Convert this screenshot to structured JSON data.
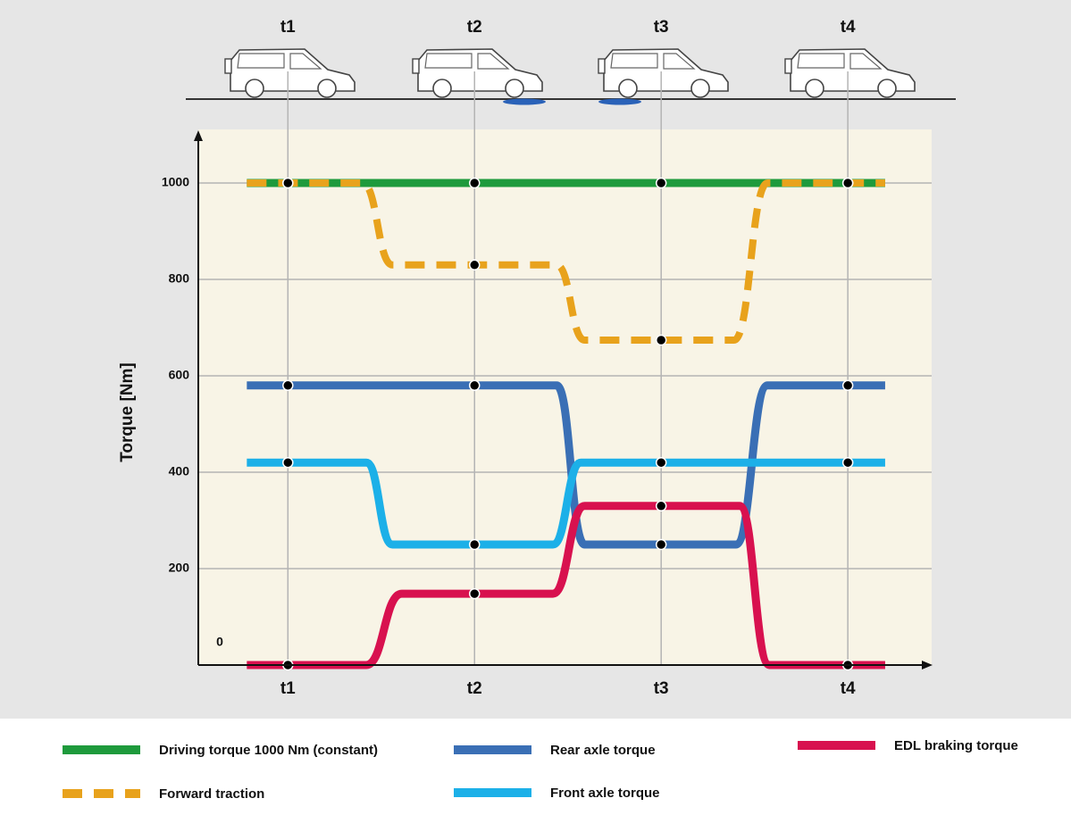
{
  "chart_data": {
    "type": "line",
    "y_label": "Torque [Nm]",
    "xlim": [
      0.52,
      4.43
    ],
    "ylim": [
      0,
      1100
    ],
    "xticks": [
      {
        "value": 1,
        "label": "t1"
      },
      {
        "value": 2,
        "label": "t2"
      },
      {
        "value": 3,
        "label": "t3"
      },
      {
        "value": 4,
        "label": "t4"
      }
    ],
    "yticks": [
      0,
      200,
      400,
      600,
      800,
      1000
    ],
    "grid": true,
    "series": [
      {
        "name": "Driving torque 1000 Nm (constant)",
        "color": "#1e9a3c",
        "dashed": false,
        "x": [
          0.78,
          4.2
        ],
        "values": [
          1000,
          1000
        ]
      },
      {
        "name": "Rear axle torque",
        "color": "#3a6fb5",
        "dashed": false,
        "x": [
          0.78,
          2.44,
          2.59,
          3.4,
          3.57,
          4.2
        ],
        "values": [
          580,
          580,
          250,
          250,
          580,
          580
        ]
      },
      {
        "name": "EDL braking torque",
        "color": "#d8114f",
        "dashed": false,
        "x": [
          0.78,
          1.42,
          1.61,
          2.42,
          2.59,
          3.42,
          3.58,
          4.2
        ],
        "values": [
          0,
          0,
          148,
          148,
          330,
          330,
          0,
          0
        ]
      },
      {
        "name": "Forward traction",
        "color": "#e8a21c",
        "dashed": true,
        "x": [
          0.78,
          1.4,
          1.56,
          2.44,
          2.59,
          3.39,
          3.57,
          4.2
        ],
        "values": [
          1000,
          1000,
          830,
          830,
          674,
          674,
          1000,
          1000
        ]
      },
      {
        "name": "Front axle torque",
        "color": "#1cb0e8",
        "dashed": false,
        "x": [
          0.78,
          1.42,
          1.56,
          2.42,
          2.57,
          4.2
        ],
        "values": [
          420,
          420,
          250,
          250,
          420,
          420
        ]
      }
    ]
  }
}
